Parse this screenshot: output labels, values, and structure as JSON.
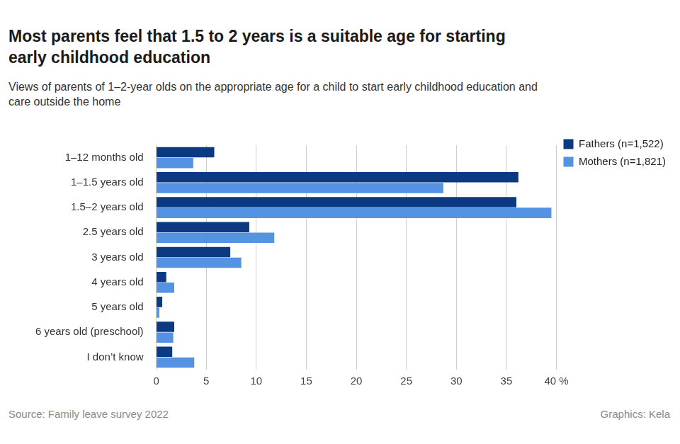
{
  "chart_data": {
    "type": "bar",
    "orientation": "horizontal",
    "title": "Most parents feel that 1.5 to 2 years is a suitable age for starting early childhood education",
    "subtitle": "Views of parents of 1–2-year olds on the appropriate age for a child to start early childhood education and care outside the home",
    "annotations": [
      "Source: Family leave survey 2022",
      "Graphics: Kela"
    ],
    "categories": [
      "1–12 months old",
      "1–1.5 years old",
      "1.5–2 years old",
      "2.5 years old",
      "3 years old",
      "4 years old",
      "5 years old",
      "6 years old (preschool)",
      "I don’t know"
    ],
    "series": [
      {
        "name": "Fathers (n=1,522)",
        "color": "#0b3a82",
        "values": [
          5.8,
          36.2,
          36.0,
          9.3,
          7.4,
          1.0,
          0.6,
          1.8,
          1.6
        ]
      },
      {
        "name": "Mothers (n=1,821)",
        "color": "#5493e3",
        "values": [
          3.7,
          28.7,
          39.5,
          11.8,
          8.5,
          1.8,
          0.3,
          1.7,
          3.8
        ]
      }
    ],
    "xlim": [
      0,
      40
    ],
    "xticks": [
      0,
      5,
      10,
      15,
      20,
      25,
      30,
      35,
      {
        "value": 40,
        "label": "40 %"
      }
    ],
    "grid": true,
    "legend": "right"
  }
}
